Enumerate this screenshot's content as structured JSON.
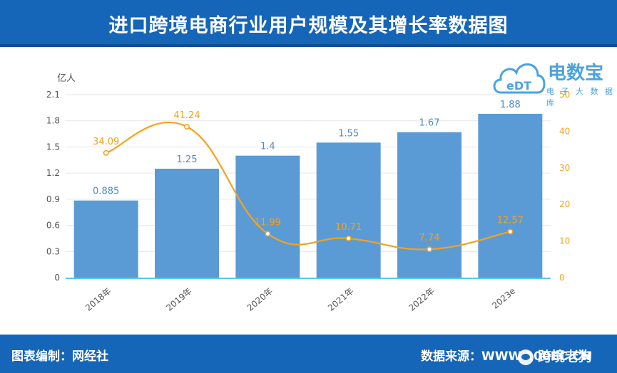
{
  "title": "进口跨境电商行业用户规模及其增长率数据图",
  "footer": {
    "editor": "图表编制：网经社",
    "source": "数据来源：WWW.100EC.CN",
    "watermark": "跨境老狗"
  },
  "logo": {
    "name": "电数宝",
    "subtitle": "电 子 大 数 据 库",
    "mark": "eDT"
  },
  "colors": {
    "bar": "#5b9bd5",
    "line": "#f5a21b",
    "bar_label": "#4a89c8",
    "line_label": "#f5a21b",
    "header": "#1565b8"
  },
  "chart_data": {
    "type": "bar",
    "categories": [
      "2018年",
      "2019年",
      "2020年",
      "2021年",
      "2022年",
      "2023e"
    ],
    "ylabel": "亿人",
    "ylim": [
      0,
      2.1
    ],
    "yticks": [
      "0",
      "0.3",
      "0.6",
      "0.9",
      "1.2",
      "1.5",
      "1.8",
      "2.1"
    ],
    "y2lim": [
      0,
      50
    ],
    "y2ticks": [
      "0",
      "10",
      "20",
      "30",
      "40",
      "50"
    ],
    "grid": true,
    "series": [
      {
        "type": "bar",
        "axis": "left",
        "values": [
          0.885,
          1.25,
          1.4,
          1.55,
          1.67,
          1.88
        ],
        "labels": [
          "0.885",
          "1.25",
          "1.4",
          "1.55",
          "1.67",
          "1.88"
        ]
      },
      {
        "type": "line",
        "axis": "right",
        "smooth": true,
        "values": [
          34.09,
          41.24,
          11.99,
          10.71,
          7.74,
          12.57
        ],
        "labels": [
          "34.09",
          "41.24",
          "11.99",
          "10.71",
          "7.74",
          "12.57"
        ]
      }
    ]
  }
}
